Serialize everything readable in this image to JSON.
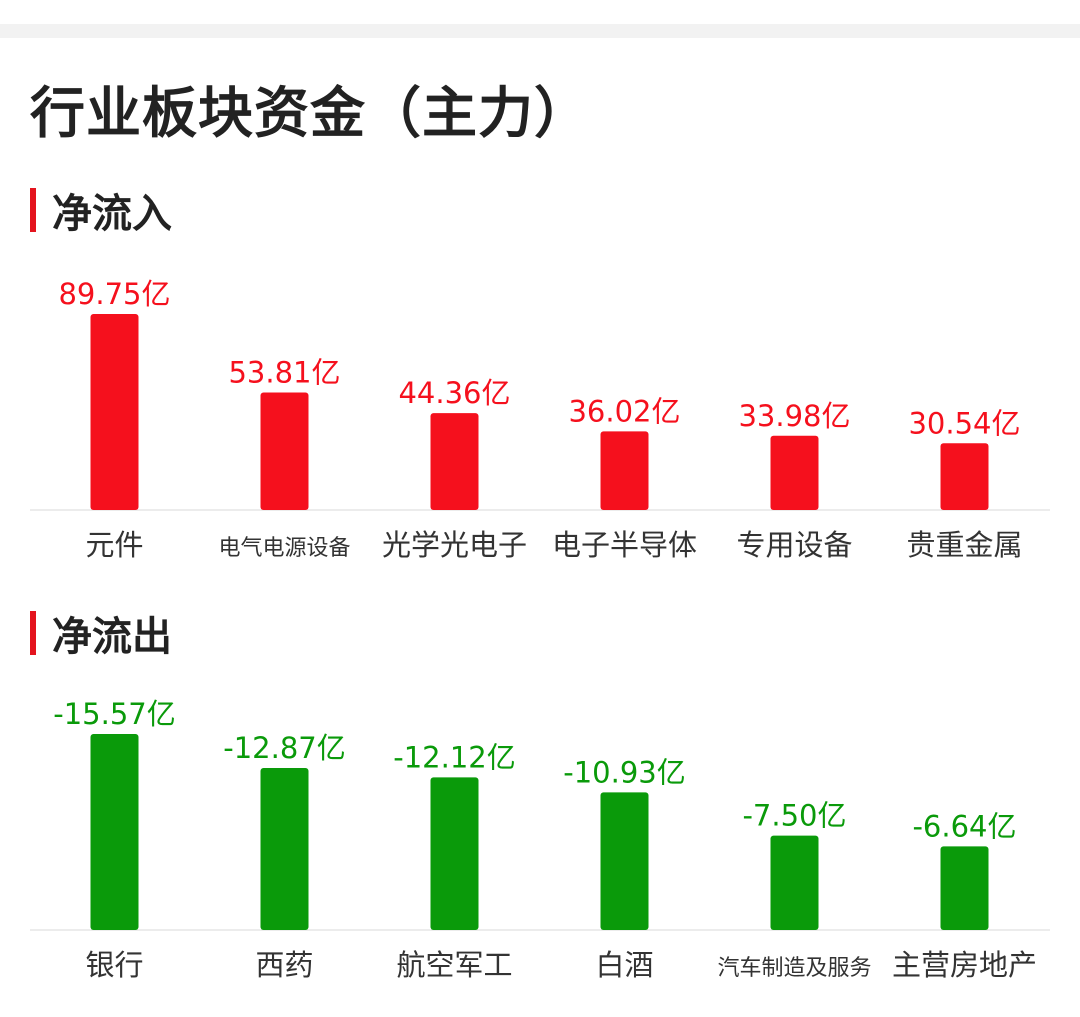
{
  "page": {
    "title": "行业板块资金（主力）"
  },
  "colors": {
    "inflow": "#f5101d",
    "outflow": "#0a9a0a",
    "accent_bar": "#e4141e",
    "axis_line": "#e6e6e6"
  },
  "sections": {
    "inflow": {
      "label": "净流入"
    },
    "outflow": {
      "label": "净流出"
    }
  },
  "chart_data": [
    {
      "type": "bar",
      "title": "净流入",
      "categories": [
        "元件",
        "电气电源设备",
        "光学光电子",
        "电子半导体",
        "专用设备",
        "贵重金属"
      ],
      "values": [
        89.75,
        53.81,
        44.36,
        36.02,
        33.98,
        30.54
      ],
      "value_labels": [
        "89.75亿",
        "53.81亿",
        "44.36亿",
        "36.02亿",
        "33.98亿",
        "30.54亿"
      ],
      "unit": "亿",
      "color": "#f5101d",
      "grid": false,
      "legend": "none"
    },
    {
      "type": "bar",
      "title": "净流出",
      "categories": [
        "银行",
        "西药",
        "航空军工",
        "白酒",
        "汽车制造及服务",
        "主营房地产"
      ],
      "values": [
        -15.57,
        -12.87,
        -12.12,
        -10.93,
        -7.5,
        -6.64
      ],
      "value_labels": [
        "-15.57亿",
        "-12.87亿",
        "-12.12亿",
        "-10.93亿",
        "-7.50亿",
        "-6.64亿"
      ],
      "unit": "亿",
      "color": "#0a9a0a",
      "grid": false,
      "legend": "none"
    }
  ]
}
